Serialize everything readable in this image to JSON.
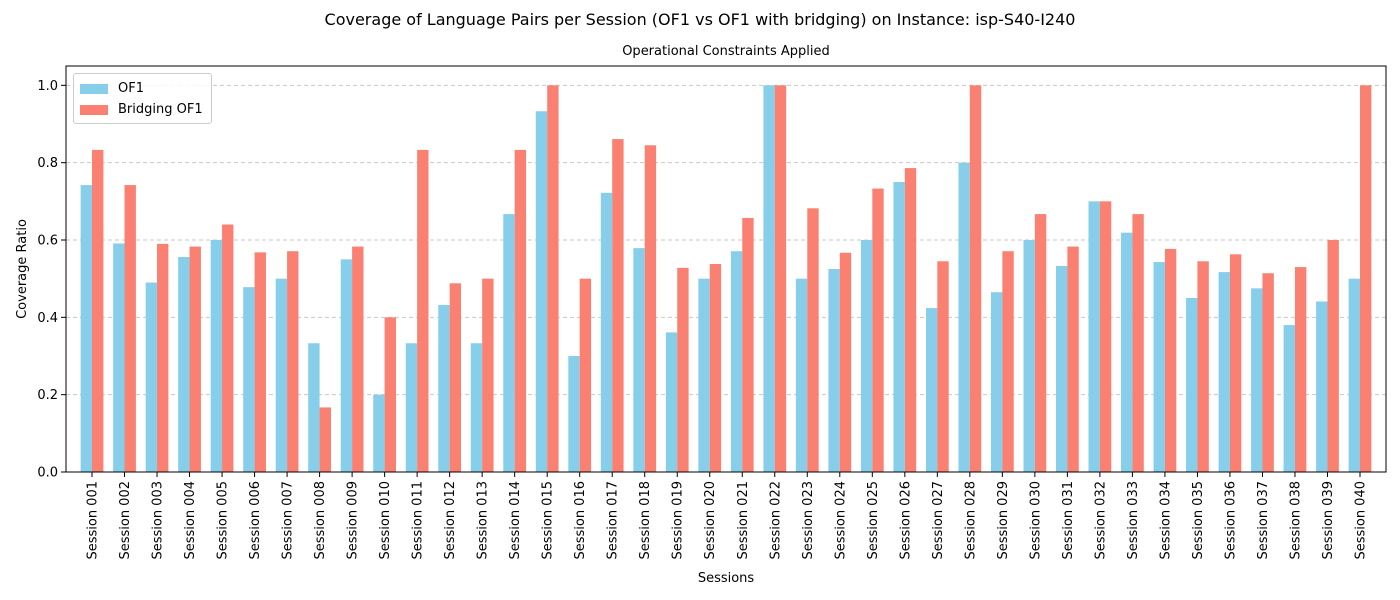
{
  "chart_data": {
    "type": "bar",
    "title": "Coverage of Language Pairs per Session (OF1 vs OF1 with bridging) on Instance: isp-S40-I240",
    "subtitle": "Operational Constraints Applied",
    "xlabel": "Sessions",
    "ylabel": "Coverage Ratio",
    "ylim": [
      0,
      1.05
    ],
    "yticks": [
      "0.0",
      "0.2",
      "0.4",
      "0.6",
      "0.8",
      "1.0"
    ],
    "grid": "y-dashed",
    "legend_position": "upper-left",
    "categories": [
      "Session 001",
      "Session 002",
      "Session 003",
      "Session 004",
      "Session 005",
      "Session 006",
      "Session 007",
      "Session 008",
      "Session 009",
      "Session 010",
      "Session 011",
      "Session 012",
      "Session 013",
      "Session 014",
      "Session 015",
      "Session 016",
      "Session 017",
      "Session 018",
      "Session 019",
      "Session 020",
      "Session 021",
      "Session 022",
      "Session 023",
      "Session 024",
      "Session 025",
      "Session 026",
      "Session 027",
      "Session 028",
      "Session 029",
      "Session 030",
      "Session 031",
      "Session 032",
      "Session 033",
      "Session 034",
      "Session 035",
      "Session 036",
      "Session 037",
      "Session 038",
      "Session 039",
      "Session 040"
    ],
    "series": [
      {
        "name": "OF1",
        "color": "#87ceeb",
        "values": [
          0.742,
          0.591,
          0.49,
          0.556,
          0.6,
          0.478,
          0.5,
          0.333,
          0.55,
          0.2,
          0.333,
          0.432,
          0.333,
          0.667,
          0.933,
          0.3,
          0.722,
          0.579,
          0.361,
          0.5,
          0.571,
          1.0,
          0.5,
          0.525,
          0.6,
          0.75,
          0.424,
          0.8,
          0.465,
          0.6,
          0.533,
          0.7,
          0.619,
          0.543,
          0.45,
          0.517,
          0.475,
          0.38,
          0.441,
          0.5
        ]
      },
      {
        "name": "Bridging OF1",
        "color": "#fa8072",
        "values": [
          0.833,
          0.742,
          0.59,
          0.583,
          0.64,
          0.568,
          0.571,
          0.167,
          0.583,
          0.4,
          0.833,
          0.488,
          0.5,
          0.833,
          1.0,
          0.5,
          0.861,
          0.845,
          0.528,
          0.538,
          0.657,
          1.0,
          0.682,
          0.567,
          0.733,
          0.786,
          0.545,
          1.0,
          0.571,
          0.667,
          0.583,
          0.7,
          0.667,
          0.577,
          0.545,
          0.563,
          0.514,
          0.53,
          0.6,
          1.0
        ]
      }
    ]
  }
}
